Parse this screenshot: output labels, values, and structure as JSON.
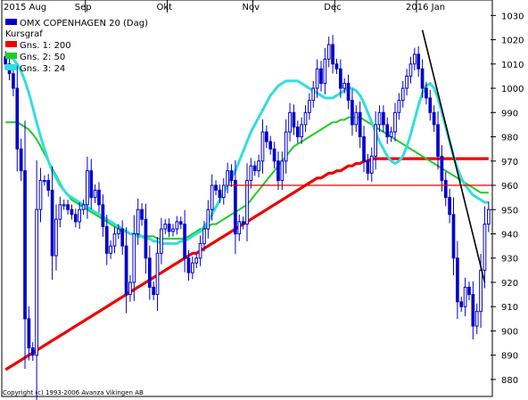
{
  "chart_data": {
    "type": "candlestick",
    "title": "OMX COPENHAGEN 20 (Dag)",
    "copyright": "Copyright (c) 1993-2006 Avanza Vikingen AB",
    "legend": [
      {
        "label": "Kursgraf",
        "color": ""
      },
      {
        "label": "Gns. 1: 200",
        "color": "#ee0000"
      },
      {
        "label": "Gns. 2: 50",
        "color": "#22cc22"
      },
      {
        "label": "Gns. 3: 24",
        "color": "#33dddd"
      }
    ],
    "month_labels": [
      "2015 Aug",
      "Sep",
      "Okt",
      "Nov",
      "Dec",
      "2016 Jan"
    ],
    "yticks": [
      880,
      890,
      900,
      910,
      920,
      930,
      940,
      950,
      960,
      970,
      980,
      990,
      1000,
      1010,
      1020,
      1030
    ],
    "ylim": [
      873,
      1036
    ],
    "candle_color": "#0000cc",
    "close": [
      1010,
      1006,
      1000,
      975,
      966,
      905,
      893,
      890,
      950,
      962,
      962,
      958,
      931,
      946,
      952,
      952,
      950,
      948,
      945,
      950,
      952,
      966,
      955,
      958,
      952,
      943,
      932,
      935,
      940,
      942,
      935,
      915,
      920,
      940,
      950,
      946,
      930,
      918,
      915,
      932,
      942,
      944,
      941,
      942,
      945,
      944,
      930,
      924,
      928,
      930,
      936,
      942,
      950,
      960,
      958,
      955,
      960,
      966,
      962,
      940,
      945,
      944,
      962,
      968,
      966,
      970,
      982,
      978,
      975,
      970,
      962,
      970,
      982,
      990,
      984,
      980,
      985,
      990,
      995,
      1000,
      1008,
      1002,
      1012,
      1018,
      1010,
      1008,
      1000,
      1002,
      995,
      985,
      990,
      980,
      970,
      965,
      972,
      985,
      990,
      985,
      980,
      982,
      990,
      995,
      1000,
      1005,
      1010,
      1014,
      1008,
      1000,
      996,
      990,
      985,
      972,
      962,
      955,
      948,
      930,
      912,
      910,
      918,
      915,
      902,
      908,
      925,
      944,
      950
    ],
    "ma200": [
      884,
      885,
      886,
      887,
      888,
      889,
      890,
      891,
      892,
      893,
      894,
      895,
      896,
      897,
      898,
      899,
      900,
      901,
      902,
      903,
      904,
      905,
      906,
      907,
      908,
      909,
      910,
      911,
      912,
      913,
      914,
      915,
      916,
      917,
      918,
      919,
      920,
      921,
      922,
      923,
      924,
      925,
      926,
      927,
      928,
      929,
      930,
      931,
      932,
      932,
      933,
      934,
      935,
      936,
      937,
      938,
      939,
      940,
      941,
      942,
      943,
      944,
      945,
      946,
      947,
      948,
      949,
      950,
      951,
      952,
      953,
      954,
      955,
      956,
      957,
      958,
      959,
      960,
      961,
      962,
      963,
      963,
      964,
      965,
      965,
      966,
      966,
      967,
      968,
      968,
      969,
      969,
      970,
      970,
      971,
      971,
      971,
      971,
      971,
      971,
      971,
      971,
      971,
      971,
      971,
      971,
      971,
      971,
      971,
      971,
      971,
      971,
      971,
      971,
      971,
      971,
      971,
      971,
      971,
      971,
      971,
      971,
      971,
      971,
      971
    ],
    "ma50": [
      986,
      986,
      986,
      986,
      985,
      984,
      983,
      981,
      979,
      976,
      973,
      970,
      967,
      964,
      961,
      958,
      956,
      954,
      953,
      952,
      951,
      950,
      949,
      948,
      947,
      946,
      945,
      944,
      943,
      942,
      941,
      941,
      940,
      940,
      940,
      939,
      939,
      939,
      939,
      938,
      938,
      938,
      938,
      938,
      938,
      938,
      938,
      939,
      940,
      941,
      942,
      942,
      943,
      944,
      944,
      945,
      946,
      947,
      948,
      949,
      950,
      951,
      952,
      954,
      956,
      958,
      960,
      962,
      964,
      966,
      968,
      970,
      972,
      974,
      976,
      977,
      978,
      979,
      980,
      981,
      982,
      983,
      984,
      985,
      986,
      986,
      987,
      987,
      988,
      988,
      988,
      988,
      987,
      986,
      985,
      984,
      983,
      982,
      981,
      980,
      979,
      978,
      977,
      976,
      975,
      974,
      973,
      972,
      971,
      970,
      969,
      968,
      967,
      966,
      965,
      964,
      963,
      962,
      961,
      960,
      959,
      958,
      957,
      957,
      957
    ],
    "ma24": [
      1012,
      1013,
      1012,
      1010,
      1007,
      1003,
      998,
      992,
      986,
      980,
      975,
      970,
      966,
      963,
      960,
      958,
      956,
      955,
      954,
      953,
      952,
      951,
      950,
      949,
      948,
      947,
      946,
      945,
      944,
      943,
      942,
      941,
      940,
      940,
      939,
      939,
      938,
      938,
      937,
      937,
      936,
      936,
      936,
      936,
      936,
      937,
      937,
      938,
      939,
      940,
      941,
      943,
      945,
      948,
      951,
      954,
      957,
      960,
      963,
      966,
      970,
      974,
      978,
      982,
      985,
      988,
      991,
      994,
      997,
      999,
      1001,
      1002,
      1003,
      1003,
      1003,
      1003,
      1002,
      1001,
      1000,
      999,
      998,
      997,
      996,
      996,
      996,
      997,
      998,
      999,
      1000,
      1000,
      999,
      997,
      994,
      990,
      986,
      982,
      978,
      975,
      972,
      970,
      969,
      970,
      972,
      976,
      981,
      987,
      993,
      998,
      1001,
      1002,
      1000,
      996,
      990,
      984,
      978,
      972,
      967,
      963,
      960,
      958,
      956,
      955,
      954,
      953,
      953
    ]
  }
}
